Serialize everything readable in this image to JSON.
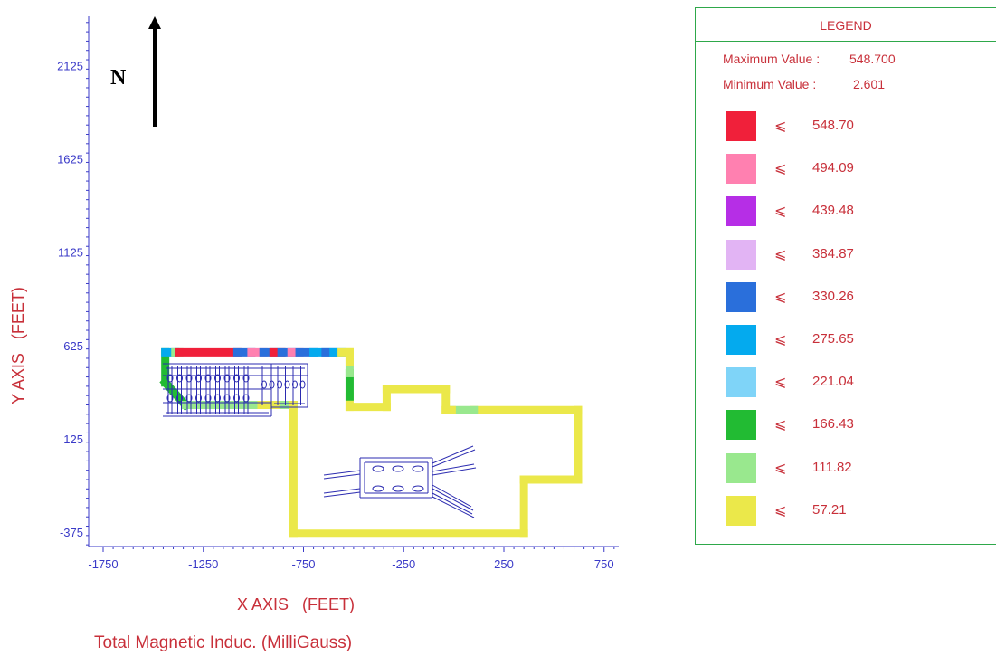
{
  "north_label": "N",
  "chart_data": {
    "type": "heatmap",
    "title": "Total Magnetic Induc. (MilliGauss)",
    "xlabel": "X AXIS   (FEET)",
    "ylabel": "Y AXIS   (FEET)",
    "xlim": [
      -1750,
      950
    ],
    "ylim": [
      -400,
      2500
    ],
    "x_ticks": [
      -1750,
      -1250,
      -750,
      -250,
      250,
      750
    ],
    "y_ticks": [
      -375,
      125,
      625,
      1125,
      1625,
      2125
    ],
    "grid": false,
    "legend_position": "right",
    "axis_color": "#3a3ac8",
    "label_color": "#c8303a",
    "boundary_segments": [
      {
        "x1": -1440,
        "y1": 632,
        "x2": -1440,
        "y2": 470,
        "color": "#22bb33"
      },
      {
        "x1": -1440,
        "y1": 470,
        "x2": -1340,
        "y2": 350,
        "color": "#22bb33"
      },
      {
        "x1": -1340,
        "y1": 350,
        "x2": -1080,
        "y2": 350,
        "color": "#99e88e"
      },
      {
        "x1": -1080,
        "y1": 350,
        "x2": -960,
        "y2": 350,
        "color": "#99e88e"
      },
      {
        "x1": -960,
        "y1": 350,
        "x2": -850,
        "y2": 350,
        "color": "#ebe84a"
      },
      {
        "x1": -850,
        "y1": 350,
        "x2": -800,
        "y2": 350,
        "color": "#99e88e"
      },
      {
        "x1": -800,
        "y1": 350,
        "x2": -800,
        "y2": -340,
        "color": "#ebe84a"
      },
      {
        "x1": -800,
        "y1": -340,
        "x2": 350,
        "y2": -340,
        "color": "#ebe84a"
      },
      {
        "x1": 350,
        "y1": -340,
        "x2": 350,
        "y2": -50,
        "color": "#ebe84a"
      },
      {
        "x1": 350,
        "y1": -50,
        "x2": 620,
        "y2": -50,
        "color": "#ebe84a"
      },
      {
        "x1": 620,
        "y1": -50,
        "x2": 620,
        "y2": 322,
        "color": "#ebe84a"
      },
      {
        "x1": 620,
        "y1": 322,
        "x2": 100,
        "y2": 322,
        "color": "#ebe84a"
      },
      {
        "x1": 100,
        "y1": 322,
        "x2": -10,
        "y2": 322,
        "color": "#99e88e"
      },
      {
        "x1": -10,
        "y1": 322,
        "x2": -40,
        "y2": 322,
        "color": "#ebe84a"
      },
      {
        "x1": -40,
        "y1": 322,
        "x2": -40,
        "y2": 435,
        "color": "#ebe84a"
      },
      {
        "x1": -40,
        "y1": 435,
        "x2": -335,
        "y2": 435,
        "color": "#ebe84a"
      },
      {
        "x1": -335,
        "y1": 435,
        "x2": -335,
        "y2": 340,
        "color": "#ebe84a"
      },
      {
        "x1": -335,
        "y1": 340,
        "x2": -520,
        "y2": 340,
        "color": "#ebe84a"
      },
      {
        "x1": -520,
        "y1": 340,
        "x2": -520,
        "y2": 395,
        "color": "#ebe84a"
      },
      {
        "x1": -520,
        "y1": 395,
        "x2": -520,
        "y2": 520,
        "color": "#22bb33"
      },
      {
        "x1": -520,
        "y1": 520,
        "x2": -520,
        "y2": 580,
        "color": "#99e88e"
      },
      {
        "x1": -520,
        "y1": 580,
        "x2": -520,
        "y2": 632,
        "color": "#ebe84a"
      },
      {
        "x1": -1440,
        "y1": 632,
        "x2": -1390,
        "y2": 632,
        "color": "#04aaee"
      },
      {
        "x1": -1390,
        "y1": 632,
        "x2": -1370,
        "y2": 632,
        "color": "#99e88e"
      },
      {
        "x1": -1370,
        "y1": 632,
        "x2": -1080,
        "y2": 632,
        "color": "#f0203a"
      },
      {
        "x1": -1080,
        "y1": 632,
        "x2": -1010,
        "y2": 632,
        "color": "#2a6fdb"
      },
      {
        "x1": -1010,
        "y1": 632,
        "x2": -950,
        "y2": 632,
        "color": "#ff80b0"
      },
      {
        "x1": -950,
        "y1": 632,
        "x2": -900,
        "y2": 632,
        "color": "#2a6fdb"
      },
      {
        "x1": -900,
        "y1": 632,
        "x2": -860,
        "y2": 632,
        "color": "#f0203a"
      },
      {
        "x1": -860,
        "y1": 632,
        "x2": -810,
        "y2": 632,
        "color": "#2a6fdb"
      },
      {
        "x1": -810,
        "y1": 632,
        "x2": -770,
        "y2": 632,
        "color": "#ff80b0"
      },
      {
        "x1": -770,
        "y1": 632,
        "x2": -700,
        "y2": 632,
        "color": "#2a6fdb"
      },
      {
        "x1": -700,
        "y1": 632,
        "x2": -640,
        "y2": 632,
        "color": "#04aaee"
      },
      {
        "x1": -640,
        "y1": 632,
        "x2": -600,
        "y2": 632,
        "color": "#2a6fdb"
      },
      {
        "x1": -600,
        "y1": 632,
        "x2": -560,
        "y2": 632,
        "color": "#04aaee"
      },
      {
        "x1": -560,
        "y1": 632,
        "x2": -520,
        "y2": 632,
        "color": "#ebe84a"
      }
    ],
    "legend": {
      "title": "LEGEND",
      "max_label": "Maximum Value :",
      "max_value": "548.700",
      "min_label": "Minimum Value :",
      "min_value": "2.601",
      "symbol": "⩽",
      "entries": [
        {
          "value": "548.70",
          "color": "#f0203a"
        },
        {
          "value": "494.09",
          "color": "#ff80b0"
        },
        {
          "value": "439.48",
          "color": "#b62ee6"
        },
        {
          "value": "384.87",
          "color": "#e2b4f4"
        },
        {
          "value": "330.26",
          "color": "#2a6fdb"
        },
        {
          "value": "275.65",
          "color": "#04aaee"
        },
        {
          "value": "221.04",
          "color": "#7fd4f8"
        },
        {
          "value": "166.43",
          "color": "#22bb33"
        },
        {
          "value": "111.82",
          "color": "#99e88e"
        },
        {
          "value": "57.21",
          "color": "#ebe84a"
        }
      ]
    }
  }
}
